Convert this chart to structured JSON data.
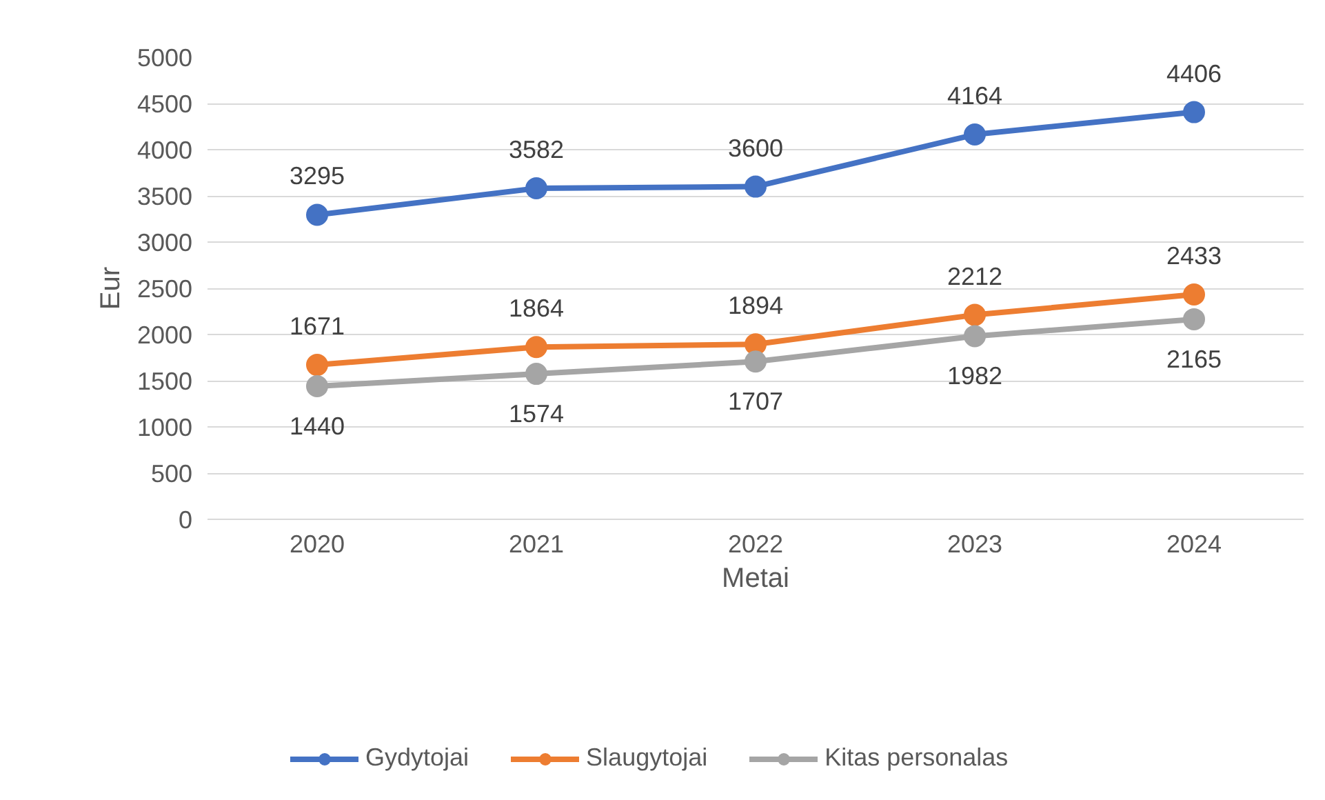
{
  "chart_data": {
    "type": "line",
    "xlabel": "Metai",
    "ylabel": "Eur",
    "categories": [
      "2020",
      "2021",
      "2022",
      "2023",
      "2024"
    ],
    "series": [
      {
        "name": "Gydytojai",
        "color": "#4472c4",
        "values": [
          3295,
          3582,
          3600,
          4164,
          4406
        ]
      },
      {
        "name": "Slaugytojai",
        "color": "#ed7d31",
        "values": [
          1671,
          1864,
          1894,
          2212,
          2433
        ]
      },
      {
        "name": "Kitas personalas",
        "color": "#a5a5a5",
        "values": [
          1440,
          1574,
          1707,
          1982,
          2165
        ]
      }
    ],
    "ylim": [
      0,
      5000
    ],
    "yticks": [
      0,
      500,
      1000,
      1500,
      2000,
      2500,
      3000,
      3500,
      4000,
      4500,
      5000
    ],
    "grid": "y",
    "legend": "bottom",
    "marker": "circle",
    "line_style": "solid",
    "data_labels": true
  }
}
